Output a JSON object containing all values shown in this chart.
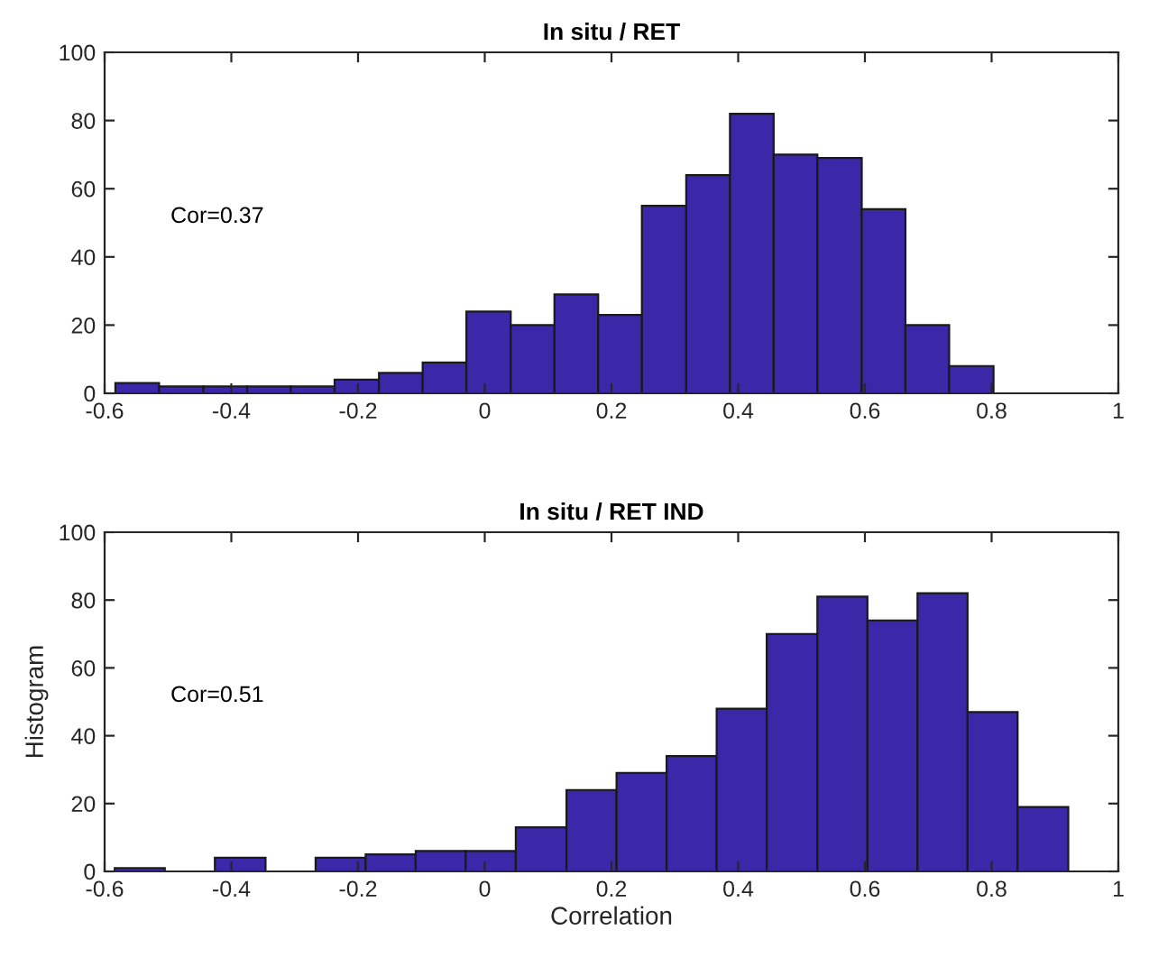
{
  "chart_data": [
    {
      "type": "histogram",
      "title": "In situ / RET",
      "bins": [
        -0.583,
        -0.514,
        -0.444,
        -0.375,
        -0.306,
        -0.237,
        -0.167,
        -0.098,
        -0.029,
        0.041,
        0.11,
        0.179,
        0.248,
        0.318,
        0.387,
        0.456,
        0.525,
        0.595,
        0.664,
        0.733,
        0.803
      ],
      "values": [
        3,
        2,
        2,
        2,
        2,
        4,
        6,
        9,
        24,
        20,
        29,
        23,
        55,
        64,
        82,
        70,
        69,
        54,
        20,
        8
      ],
      "color": "#3b28a8",
      "xlim": [
        -0.6,
        1
      ],
      "xticks": [
        -0.6,
        -0.4,
        -0.2,
        0,
        0.2,
        0.4,
        0.6,
        0.8,
        1
      ],
      "ylim": [
        0,
        100
      ],
      "yticks": [
        0,
        20,
        40,
        60,
        80,
        100
      ],
      "annotations": [
        "Cor=0.37"
      ]
    },
    {
      "type": "histogram",
      "title": "In situ / RET IND",
      "xlabel": "Correlation",
      "ylabel": "Histogram",
      "bins": [
        -0.584,
        -0.505,
        -0.426,
        -0.346,
        -0.267,
        -0.188,
        -0.109,
        -0.03,
        0.049,
        0.129,
        0.208,
        0.287,
        0.366,
        0.445,
        0.525,
        0.604,
        0.683,
        0.762,
        0.841,
        0.921
      ],
      "values": [
        1,
        0,
        4,
        0,
        4,
        5,
        6,
        6,
        13,
        24,
        29,
        34,
        48,
        70,
        81,
        74,
        82,
        47,
        19
      ],
      "color": "#3b28a8",
      "xlim": [
        -0.6,
        1
      ],
      "xticks": [
        -0.6,
        -0.4,
        -0.2,
        0,
        0.2,
        0.4,
        0.6,
        0.8,
        1
      ],
      "ylim": [
        0,
        100
      ],
      "yticks": [
        0,
        20,
        40,
        60,
        80,
        100
      ],
      "annotations": [
        "Cor=0.51"
      ]
    }
  ]
}
